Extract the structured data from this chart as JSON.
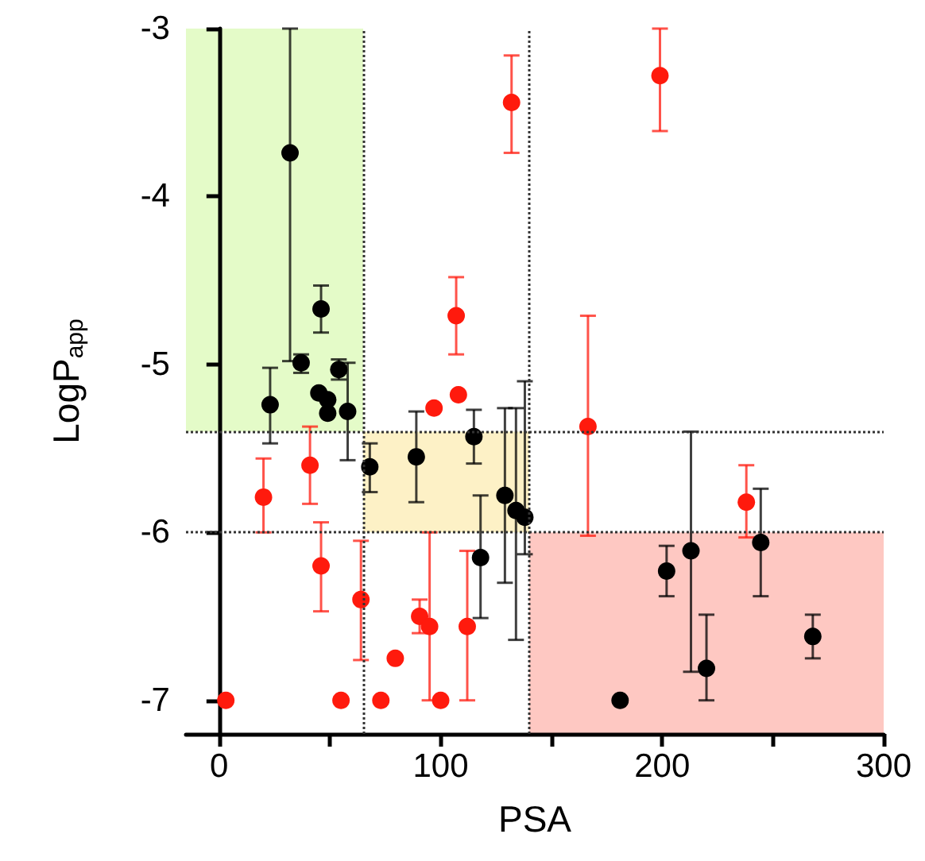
{
  "chart_data": {
    "type": "scatter",
    "xlabel": "PSA",
    "ylabel": "LogP$_{app}$",
    "xlim": [
      -15,
      300
    ],
    "ylim": [
      -7.2,
      -3
    ],
    "xticks": [
      0,
      {
        "value": 50,
        "label": null
      },
      100,
      {
        "value": 150,
        "label": null
      },
      200,
      {
        "value": 250,
        "label": null
      },
      300
    ],
    "yticks": [
      -7,
      -6,
      -5,
      -4,
      -3
    ],
    "marker": "circle",
    "ref_lines": [
      {
        "axis": "x",
        "value": 65,
        "line_style": "dotted",
        "color": "#333333"
      },
      {
        "axis": "x",
        "value": 140,
        "line_style": "dotted",
        "color": "#333333"
      },
      {
        "axis": "y",
        "value": -5.4,
        "line_style": "dotted",
        "color": "#333333"
      },
      {
        "axis": "y",
        "value": -6,
        "line_style": "dotted",
        "color": "#333333"
      }
    ],
    "series": [
      {
        "color": "#000000",
        "x": [
          32,
          37,
          46,
          54,
          23,
          45,
          49,
          49,
          58,
          68,
          89,
          115,
          118,
          129,
          134,
          138,
          181,
          202,
          213,
          220,
          244.5,
          268
        ],
        "values": [
          -3.74,
          -4.99,
          -4.67,
          -5.03,
          -5.24,
          -5.17,
          -5.21,
          -5.29,
          -5.28,
          -5.61,
          -5.55,
          -5.43,
          -6.15,
          -5.78,
          -5.87,
          -5.91,
          -7.0,
          -6.23,
          -6.11,
          -6.81,
          -6.06,
          -6.62
        ],
        "errors": [
          [
            -4.98,
            -3.0
          ],
          [
            -5.05,
            -4.94
          ],
          [
            -4.81,
            -4.53
          ],
          [
            -5.09,
            -4.97
          ],
          [
            -5.47,
            -5.02
          ],
          null,
          null,
          null,
          [
            -5.57,
            -4.99
          ],
          [
            -5.76,
            -5.47
          ],
          [
            -5.82,
            -5.28
          ],
          [
            -5.59,
            -5.27
          ],
          [
            -6.51,
            -5.78
          ],
          [
            -6.3,
            -5.26
          ],
          [
            -6.64,
            -5.26
          ],
          [
            -6.13,
            -5.1
          ],
          null,
          [
            -6.38,
            -6.08
          ],
          [
            -6.83,
            -5.4
          ],
          [
            -7.0,
            -6.49
          ],
          [
            -6.38,
            -5.74
          ],
          [
            -6.75,
            -6.49
          ]
        ]
      },
      {
        "color": "#ff1a0d",
        "x": [
          3,
          20,
          41,
          46,
          55,
          64,
          73,
          79.5,
          90.5,
          95,
          100,
          97,
          112,
          108,
          107,
          132,
          199,
          166.5,
          238
        ],
        "values": [
          -7.0,
          -5.79,
          -5.6,
          -6.2,
          -7.0,
          -6.4,
          -7.0,
          -6.75,
          -6.5,
          -6.56,
          -7.0,
          -5.26,
          -6.56,
          -5.18,
          -4.71,
          -3.44,
          -3.28,
          -5.37,
          -5.82
        ],
        "errors": [
          null,
          [
            -6.0,
            -5.56
          ],
          [
            -5.83,
            -5.37
          ],
          [
            -6.47,
            -5.94
          ],
          null,
          [
            -6.76,
            -6.05
          ],
          null,
          null,
          [
            -6.6,
            -6.4
          ],
          [
            -7.0,
            -6.0
          ],
          null,
          null,
          [
            -7.0,
            -6.11
          ],
          null,
          [
            -4.94,
            -4.48
          ],
          [
            -3.74,
            -3.16
          ],
          [
            -3.61,
            -3.0
          ],
          [
            -6.02,
            -4.71
          ],
          [
            -6.03,
            -5.6
          ]
        ]
      }
    ]
  }
}
